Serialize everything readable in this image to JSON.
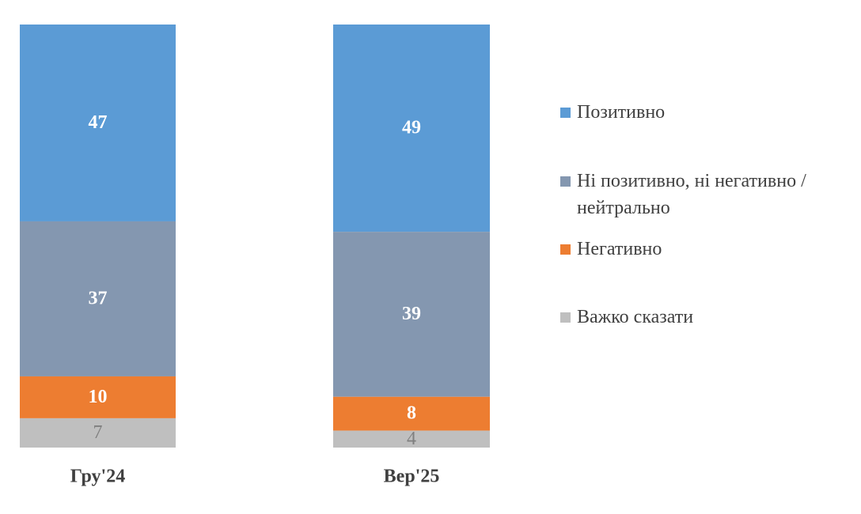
{
  "chart_data": {
    "type": "bar",
    "stacked": "percent",
    "categories": [
      "Гру'24",
      "Вер'25"
    ],
    "series": [
      {
        "name": "Позитивно",
        "color": "#5b9bd5",
        "label_color": "#ffffff",
        "values": [
          47,
          49
        ]
      },
      {
        "name": "Ні позитивно, ні негативно / нейтрально",
        "color": "#8497b0",
        "label_color": "#ffffff",
        "values": [
          37,
          39
        ]
      },
      {
        "name": "Негативно",
        "color": "#ed7d31",
        "label_color": "#ffffff",
        "values": [
          10,
          8
        ]
      },
      {
        "name": "Важко сказати",
        "color": "#bfbfbf",
        "label_color": "#7f7f7f",
        "values": [
          7,
          4
        ]
      }
    ],
    "legend": "right"
  }
}
